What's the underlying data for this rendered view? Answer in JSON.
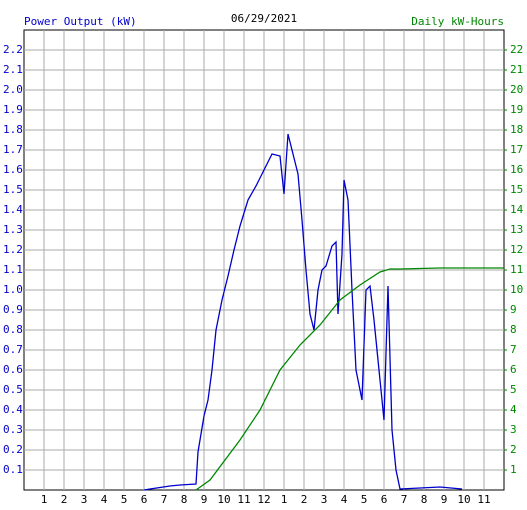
{
  "chart_data": {
    "type": "line",
    "title": "06/29/2021",
    "xlim": [
      0,
      24
    ],
    "xticks": [
      1,
      2,
      3,
      4,
      5,
      6,
      7,
      8,
      9,
      10,
      11,
      12,
      {
        "value": 13,
        "label": "1"
      },
      {
        "value": 14,
        "label": "2"
      },
      {
        "value": 15,
        "label": "3"
      },
      {
        "value": 16,
        "label": "4"
      },
      {
        "value": 17,
        "label": "5"
      },
      {
        "value": 18,
        "label": "6"
      },
      {
        "value": 19,
        "label": "7"
      },
      {
        "value": 20,
        "label": "8"
      },
      {
        "value": 21,
        "label": "9"
      },
      {
        "value": 22,
        "label": "10"
      },
      {
        "value": 23,
        "label": "11"
      }
    ],
    "ylim": [
      0,
      2.3
    ],
    "yticks": [
      0.1,
      0.2,
      0.3,
      0.4,
      0.5,
      0.6,
      0.7,
      0.8,
      0.9,
      {
        "value": 1,
        "label": "1.0"
      },
      1.1,
      1.2,
      1.3,
      1.4,
      1.5,
      1.6,
      1.7,
      1.8,
      1.9,
      {
        "value": 2,
        "label": "2.0"
      },
      2.1,
      2.2
    ],
    "y2lim": [
      0,
      23
    ],
    "y2ticks": [
      1,
      2,
      3,
      4,
      5,
      6,
      7,
      8,
      9,
      10,
      11,
      12,
      13,
      14,
      15,
      16,
      17,
      18,
      19,
      20,
      21,
      22
    ],
    "grid": true,
    "series": [
      {
        "name": "Power Output (kW)",
        "color": "#0000cc",
        "x": [
          6,
          6.3,
          7.3,
          7.8,
          8.6,
          8.7,
          9.0,
          9.2,
          9.4,
          9.6,
          9.9,
          10.2,
          10.5,
          10.8,
          11.2,
          11.6,
          12.0,
          12.4,
          12.8,
          13.0,
          13.2,
          13.4,
          13.7,
          13.9,
          14.1,
          14.3,
          14.5,
          14.7,
          14.9,
          15.1,
          15.4,
          15.6,
          15.7,
          15.9,
          16.0,
          16.2,
          16.4,
          16.6,
          16.9,
          17.1,
          17.3,
          17.5,
          17.7,
          18.0,
          18.2,
          18.4,
          18.6,
          18.8,
          19.8,
          20.8,
          21.9
        ],
        "values": [
          0,
          0.005,
          0.02,
          0.025,
          0.03,
          0.19,
          0.37,
          0.45,
          0.6,
          0.8,
          0.95,
          1.07,
          1.2,
          1.32,
          1.45,
          1.52,
          1.6,
          1.68,
          1.67,
          1.48,
          1.78,
          1.7,
          1.58,
          1.35,
          1.1,
          0.88,
          0.8,
          1.0,
          1.1,
          1.12,
          1.22,
          1.24,
          0.88,
          1.18,
          1.55,
          1.45,
          1.0,
          0.6,
          0.45,
          1.0,
          1.02,
          0.85,
          0.65,
          0.35,
          1.02,
          0.3,
          0.1,
          0.005,
          0.01,
          0.015,
          0.005
        ]
      },
      {
        "name": "Daily kW-Hours",
        "color": "#008800",
        "axis": "y2",
        "x": [
          8.6,
          9.3,
          10.8,
          11.8,
          12.8,
          13.8,
          14.8,
          15.8,
          16.8,
          17.8,
          18.3,
          18.8,
          20.8,
          24
        ],
        "values": [
          0,
          0.5,
          2.5,
          4,
          6,
          7.25,
          8.25,
          9.5,
          10.25,
          10.9,
          11.05,
          11.05,
          11.1,
          11.1
        ]
      }
    ]
  }
}
